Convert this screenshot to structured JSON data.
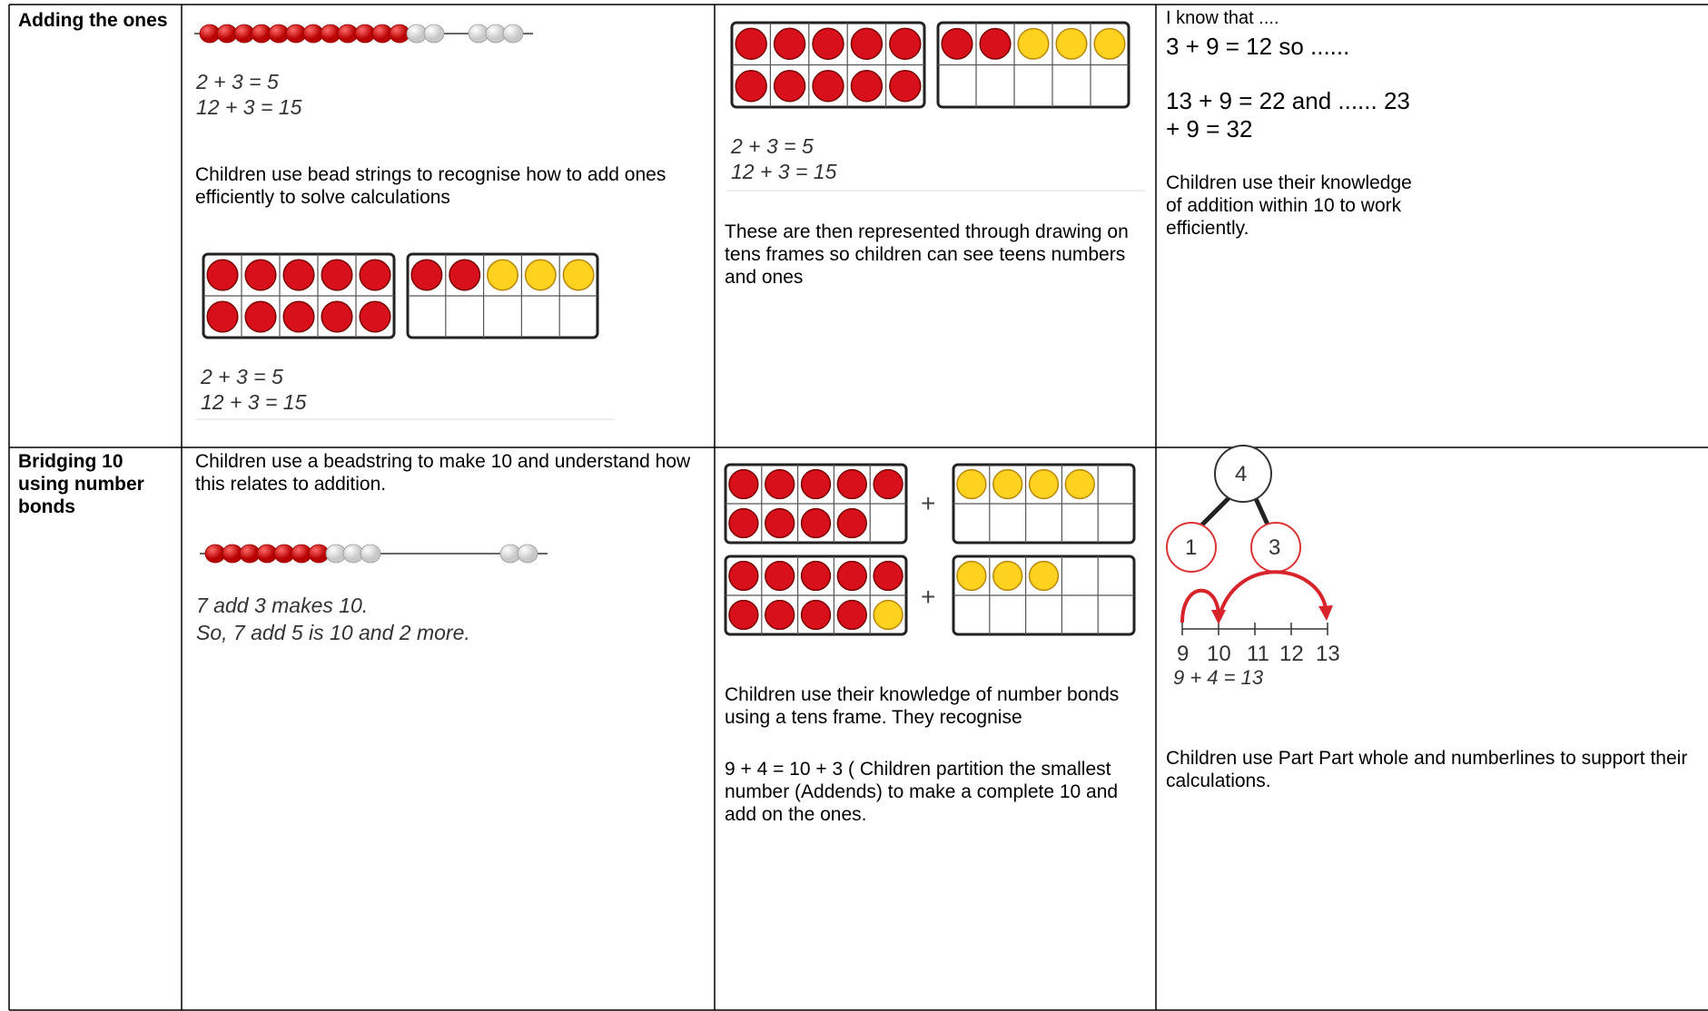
{
  "rows": [
    {
      "heading": "Adding the ones",
      "concrete": {
        "bead_equations": [
          "2 + 3 = 5",
          "12 + 3 = 15"
        ],
        "text": "Children use bead strings to recognise how to add ones efficiently to solve calculations",
        "frame_equations": [
          "2 + 3 = 5",
          "12 + 3 = 15"
        ]
      },
      "pictorial": {
        "equations": [
          "2 + 3 = 5",
          "12 + 3 = 15"
        ],
        "text": "These are then represented through drawing on tens frames so children can see teens numbers and ones"
      },
      "abstract": {
        "intro": "I know that ....",
        "lines": [
          "3 + 9 = 12 so ......",
          "13 + 9 = 22 and ...... 23 + 9 = 32"
        ],
        "text": "Children use their knowledge of addition within 10 to work efficiently."
      }
    },
    {
      "heading": "Bridging 10 using number bonds",
      "concrete": {
        "text": "Children use a beadstring to make 10 and understand how this relates to addition.",
        "bead_lines": [
          "7 add 3 makes 10.",
          "So, 7 add 5 is 10 and 2 more."
        ]
      },
      "pictorial": {
        "plus": [
          "+",
          "+"
        ],
        "text": "Children use their knowledge of number bonds using a tens frame. They recognise",
        "note": "9 + 4 = 10 + 3 ( Children partition the smallest number (Addends) to make a complete 10 and add on the ones."
      },
      "abstract": {
        "whole": "4",
        "parts": [
          "1",
          "3"
        ],
        "number_line": [
          "9",
          "10",
          "11",
          "12",
          "13"
        ],
        "equation": "9 + 4 = 13",
        "text": "Children use Part Part whole and numberlines to support their calculations."
      }
    }
  ]
}
